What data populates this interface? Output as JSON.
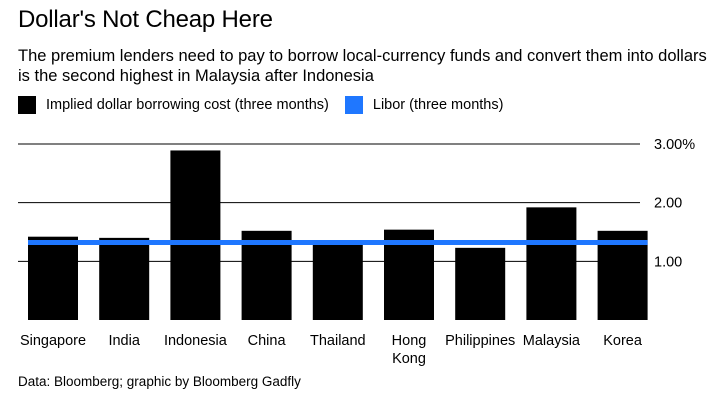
{
  "chart_data": {
    "type": "bar",
    "title": "Dollar's Not Cheap Here",
    "subtitle": "The premium lenders need to pay to borrow local-currency funds and convert them into dollars is the second highest in Malaysia after Indonesia",
    "categories": [
      "Singapore",
      "India",
      "Indonesia",
      "China",
      "Thailand",
      "Hong Kong",
      "Philippines",
      "Malaysia",
      "Korea"
    ],
    "category_lines": [
      [
        "Singapore"
      ],
      [
        "India"
      ],
      [
        "Indonesia"
      ],
      [
        "China"
      ],
      [
        "Thailand"
      ],
      [
        "Hong",
        "Kong"
      ],
      [
        "Philippines"
      ],
      [
        "Malaysia"
      ],
      [
        "Korea"
      ]
    ],
    "series": [
      {
        "name": "Implied dollar borrowing cost (three months)",
        "type": "bar",
        "color": "#000000",
        "values": [
          1.42,
          1.4,
          2.89,
          1.52,
          1.3,
          1.54,
          1.23,
          1.92,
          1.52
        ]
      },
      {
        "name": "Libor (three months)",
        "type": "line",
        "color": "#1f77ff",
        "value": 1.32
      }
    ],
    "y_ticks": [
      {
        "value": 3.0,
        "label": "3.00%"
      },
      {
        "value": 2.0,
        "label": "2.00"
      },
      {
        "value": 1.0,
        "label": "1.00"
      }
    ],
    "ylim": [
      0,
      3.0
    ],
    "xlabel": "",
    "ylabel": "",
    "legend_position": "top-left",
    "source": "Data: Bloomberg; graphic by Bloomberg Gadfly"
  }
}
